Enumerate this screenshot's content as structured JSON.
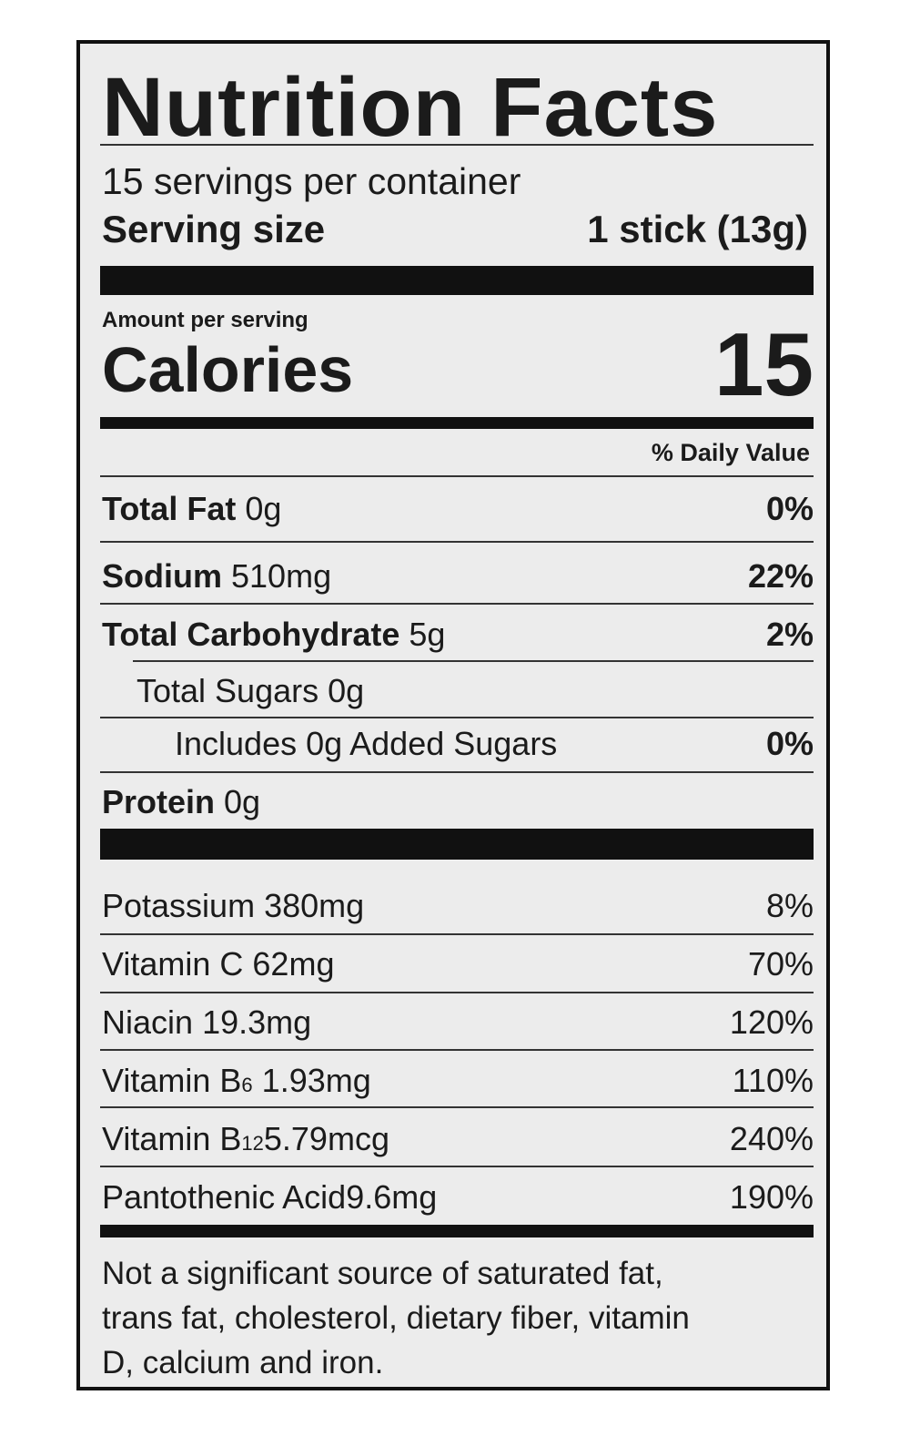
{
  "title": "Nutrition Facts",
  "servings_per_container": "15 servings per container",
  "serving_size_label": "Serving size",
  "serving_size_value": "1 stick (13g)",
  "amount_per_serving": "Amount per serving",
  "calories_label": "Calories",
  "calories_value": "15",
  "daily_value_header": "% Daily Value",
  "nutrients": [
    {
      "name": "Total Fat",
      "amount": "0g",
      "dv": "0%"
    },
    {
      "name": "Sodium",
      "amount": "510mg",
      "dv": "22%"
    },
    {
      "name": "Total Carbohydrate",
      "amount": "5g",
      "dv": "2%"
    },
    {
      "name": "Total Sugars",
      "amount": "0g",
      "dv": ""
    },
    {
      "name": "Includes 0g Added Sugars",
      "amount": "",
      "dv": "0%"
    },
    {
      "name": "Protein",
      "amount": "0g",
      "dv": ""
    }
  ],
  "vitamins": [
    {
      "name": "Potassium",
      "sub": "",
      "amount": "380mg",
      "dv": "8%"
    },
    {
      "name": "Vitamin C",
      "sub": "",
      "amount": "62mg",
      "dv": "70%"
    },
    {
      "name": "Niacin",
      "sub": "",
      "amount": "19.3mg",
      "dv": "120%"
    },
    {
      "name": "Vitamin B",
      "sub": "6",
      "amount": "1.93mg",
      "dv": "110%"
    },
    {
      "name": "Vitamin B",
      "sub": "12",
      "amount": "5.79mcg",
      "dv": "240%"
    },
    {
      "name": "Pantothenic Acid",
      "sub": "",
      "amount": "9.6mg",
      "dv": "190%"
    }
  ],
  "footnote": [
    "Not a significant source of saturated fat,",
    "trans fat, cholesterol, dietary fiber, vitamin",
    "D, calcium and iron."
  ]
}
